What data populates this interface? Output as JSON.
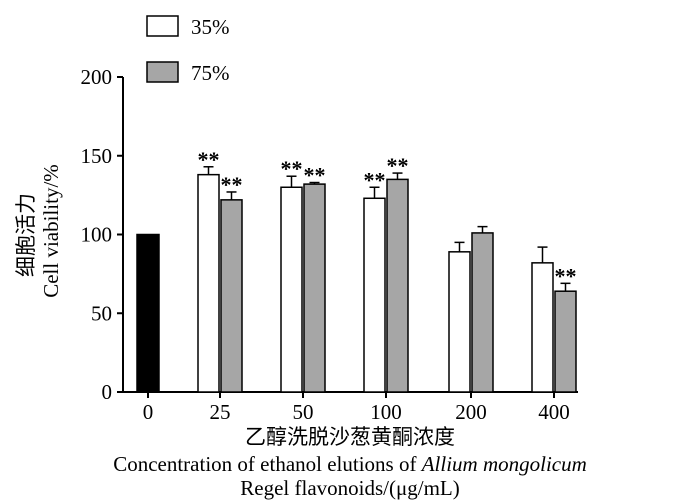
{
  "chart_data": {
    "type": "bar",
    "title": "",
    "legend": {
      "placement": "top-left",
      "entries": [
        {
          "label": "35%",
          "color": "#ffffff"
        },
        {
          "label": "75%",
          "color": "#a6a6a6"
        }
      ]
    },
    "ylabel_cn": "细胞活力",
    "ylabel_en": "Cell viability/%",
    "xlabel_cn": "乙醇洗脱沙葱黄酮浓度",
    "xlabel_en_prefix": "Concentration of ethanol elutions of ",
    "xlabel_en_italic": "Allium mongolicum",
    "xlabel_en_line2": "Regel flavonoids/(μg/mL)",
    "ylim": [
      0,
      200
    ],
    "yticks": [
      "0",
      "50",
      "100",
      "150",
      "200"
    ],
    "categories": [
      "0",
      "25",
      "50",
      "100",
      "200",
      "400"
    ],
    "control": {
      "category": "0",
      "value": 100,
      "color": "#000000"
    },
    "series": [
      {
        "name": "35%",
        "color": "#ffffff",
        "values": [
          null,
          138,
          130,
          123,
          89,
          82
        ],
        "errors": [
          null,
          5,
          7,
          7,
          6,
          10
        ],
        "marks": [
          "",
          "**",
          "**",
          "**",
          "",
          ""
        ]
      },
      {
        "name": "75%",
        "color": "#a6a6a6",
        "values": [
          null,
          122,
          132,
          135,
          101,
          64
        ],
        "errors": [
          null,
          5,
          1,
          4,
          4,
          5
        ],
        "marks": [
          "",
          "**",
          "**",
          "**",
          "",
          "**"
        ]
      }
    ],
    "grid": false
  }
}
